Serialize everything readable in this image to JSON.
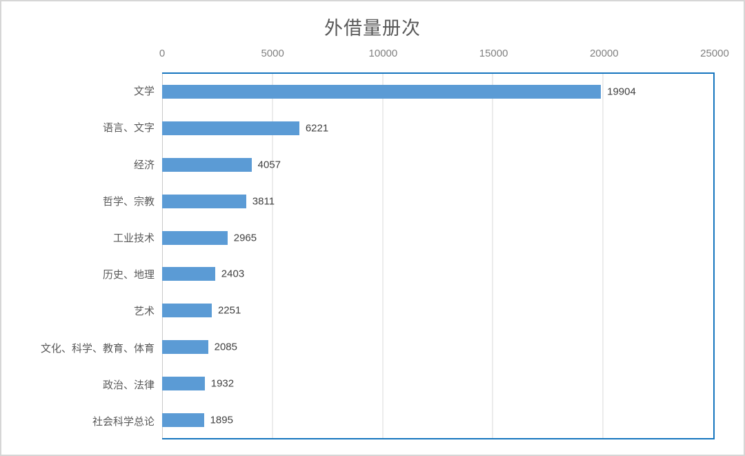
{
  "chart_data": {
    "type": "bar",
    "orientation": "horizontal",
    "title": "外借量册次",
    "categories": [
      "文学",
      "语言、文字",
      "经济",
      "哲学、宗教",
      "工业技术",
      "历史、地理",
      "艺术",
      "文化、科学、教育、体育",
      "政治、法律",
      "社会科学总论"
    ],
    "values": [
      19904,
      6221,
      4057,
      3811,
      2965,
      2403,
      2251,
      2085,
      1932,
      1895
    ],
    "data_labels": [
      "19904",
      "6221",
      "4057",
      "3811",
      "2965",
      "2403",
      "2251",
      "2085",
      "1932",
      "1895"
    ],
    "x_ticks": [
      0,
      5000,
      10000,
      15000,
      20000,
      25000
    ],
    "x_tick_labels": [
      "0",
      "5000",
      "10000",
      "15000",
      "20000",
      "25000"
    ],
    "xlim": [
      0,
      25000
    ],
    "xlabel": "",
    "ylabel": "",
    "grid": "vertical-gridlines-on",
    "legend": "none",
    "value_axis_position": "top"
  },
  "colors": {
    "bar": "#5B9BD5",
    "plot_border": "#1474BE",
    "gridline": "#D9D9D9",
    "axis_line": "#C9C9C9",
    "axis_text": "#808080",
    "category_text": "#595959",
    "value_text": "#404040",
    "title_text": "#595959",
    "chart_border": "#D6D6D6",
    "background": "#FFFFFF"
  }
}
